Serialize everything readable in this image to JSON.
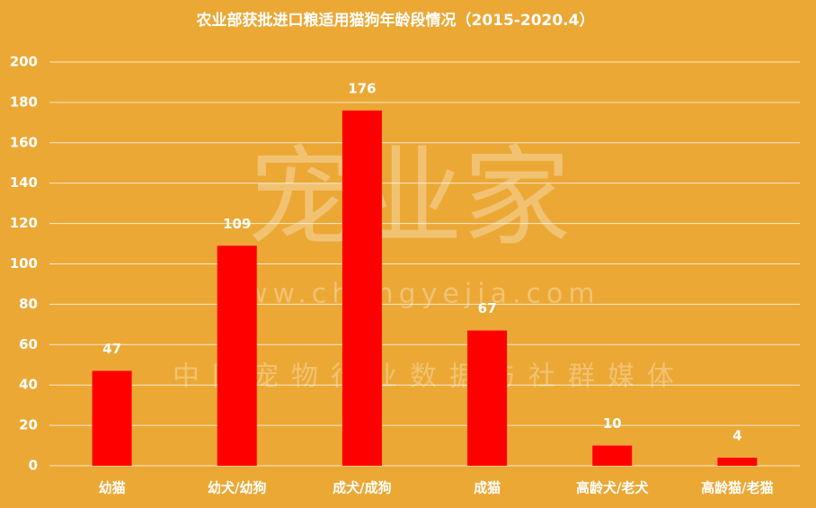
{
  "chart_data": {
    "type": "bar",
    "title": "农业部获批进口粮适用猫狗年龄段情况（2015-2020.4）",
    "categories": [
      "幼猫",
      "幼犬/幼狗",
      "成犬/成狗",
      "成猫",
      "高龄犬/老犬",
      "高龄猫/老猫"
    ],
    "values": [
      47,
      109,
      176,
      67,
      10,
      4
    ],
    "color": "#ff0000",
    "ylim": [
      0,
      200
    ],
    "yticks": [
      0,
      20,
      40,
      60,
      80,
      100,
      120,
      140,
      160,
      180,
      200
    ],
    "grid": true,
    "watermark": {
      "logo": "宠业家",
      "url": "www.chongyejia.com",
      "slogan": "中国宠物行业数据与社群媒体"
    }
  }
}
